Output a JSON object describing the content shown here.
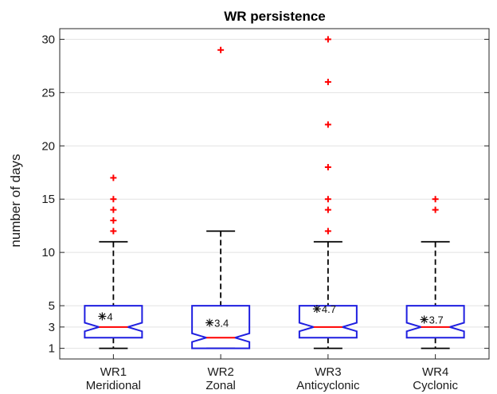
{
  "chart_data": {
    "type": "boxplot",
    "title": "WR persistence",
    "ylabel": "number of days",
    "xlabel": "",
    "ylim": [
      0,
      31
    ],
    "yticks": [
      1,
      3,
      5,
      10,
      15,
      20,
      25,
      30
    ],
    "grid": true,
    "notched": true,
    "categories": [
      {
        "line1": "WR1",
        "line2": "Meridional"
      },
      {
        "line1": "WR2",
        "line2": "Zonal"
      },
      {
        "line1": "WR3",
        "line2": "Anticyclonic"
      },
      {
        "line1": "WR4",
        "line2": "Cyclonic"
      }
    ],
    "boxes": [
      {
        "q1": 2,
        "median": 3,
        "q3": 5,
        "whisker_low": 1,
        "whisker_high": 11,
        "notch_low": 2.6,
        "notch_high": 3.4,
        "mean": 4,
        "mean_label": "4",
        "outliers": [
          12,
          13,
          14,
          15,
          17
        ]
      },
      {
        "q1": 1,
        "median": 2,
        "q3": 5,
        "whisker_low": 1,
        "whisker_high": 12,
        "notch_low": 1.6,
        "notch_high": 2.4,
        "mean": 3.4,
        "mean_label": "3.4",
        "outliers": [
          29
        ]
      },
      {
        "q1": 2,
        "median": 3,
        "q3": 5,
        "whisker_low": 1,
        "whisker_high": 11,
        "notch_low": 2.6,
        "notch_high": 3.4,
        "mean": 4.7,
        "mean_label": "4.7",
        "outliers": [
          12,
          14,
          15,
          18,
          22,
          26,
          30
        ]
      },
      {
        "q1": 2,
        "median": 3,
        "q3": 5,
        "whisker_low": 1,
        "whisker_high": 11,
        "notch_low": 2.6,
        "notch_high": 3.4,
        "mean": 3.7,
        "mean_label": "3.7",
        "outliers": [
          14,
          15
        ]
      }
    ],
    "colors": {
      "box": "#1f1fe0",
      "median": "#ff0000",
      "whisker": "#000000",
      "outlier": "#ff0000",
      "grid": "#e2e2e2",
      "axes": "#262626"
    }
  }
}
